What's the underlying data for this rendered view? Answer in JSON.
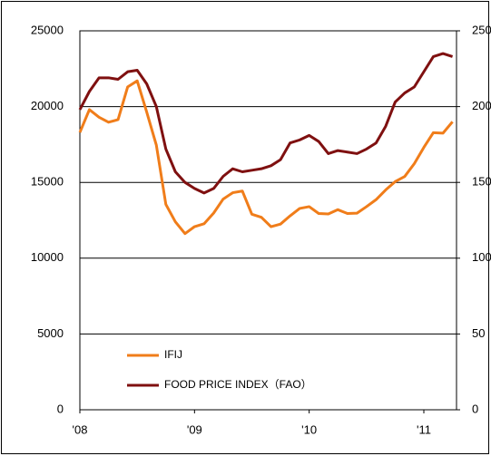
{
  "chart_data": {
    "type": "line",
    "x": [
      2008,
      2008.083,
      2008.167,
      2008.25,
      2008.333,
      2008.417,
      2008.5,
      2008.583,
      2008.667,
      2008.75,
      2008.833,
      2008.917,
      2009,
      2009.083,
      2009.167,
      2009.25,
      2009.333,
      2009.417,
      2009.5,
      2009.583,
      2009.667,
      2009.75,
      2009.833,
      2009.917,
      2010,
      2010.083,
      2010.167,
      2010.25,
      2010.333,
      2010.417,
      2010.5,
      2010.583,
      2010.667,
      2010.75,
      2010.833,
      2010.917,
      2011,
      2011.083,
      2011.167,
      2011.25
    ],
    "series": [
      {
        "name": "IFIJ",
        "color": "#f07d1a",
        "axis": "y",
        "values": [
          18300,
          19800,
          19300,
          18970,
          19140,
          21300,
          21700,
          19640,
          17460,
          13550,
          12400,
          11620,
          12080,
          12270,
          12980,
          13900,
          14320,
          14430,
          12900,
          12700,
          12080,
          12250,
          12790,
          13280,
          13400,
          12950,
          12920,
          13200,
          12950,
          12970,
          13400,
          13860,
          14500,
          15050,
          15390,
          16240,
          17310,
          18280,
          18250,
          19000
        ]
      },
      {
        "name": "FOOD PRICE INDEX（FAO）",
        "color": "#7f1010",
        "axis": "y2",
        "values": [
          198,
          210,
          219,
          219,
          218,
          223,
          224,
          215,
          200,
          172,
          157,
          150,
          146,
          143,
          146,
          154,
          159,
          157,
          158,
          159,
          161,
          165,
          176,
          178,
          181,
          177,
          169,
          171,
          170,
          169,
          172,
          176,
          187,
          203,
          209,
          213,
          223,
          233,
          235,
          233
        ]
      }
    ],
    "xlim": [
      2008,
      2011.285
    ],
    "xticks": [
      {
        "value": 2008,
        "label": "'08"
      },
      {
        "value": 2009,
        "label": "'09"
      },
      {
        "value": 2010,
        "label": "'10"
      },
      {
        "value": 2011,
        "label": "'11"
      }
    ],
    "ylim": [
      0,
      25000
    ],
    "yticks": [
      0,
      5000,
      10000,
      15000,
      20000,
      25000
    ],
    "y2lim": [
      0,
      250
    ],
    "y2ticks": [
      0,
      50,
      100,
      150,
      200,
      250
    ],
    "grid": true,
    "legend": "lower left"
  }
}
